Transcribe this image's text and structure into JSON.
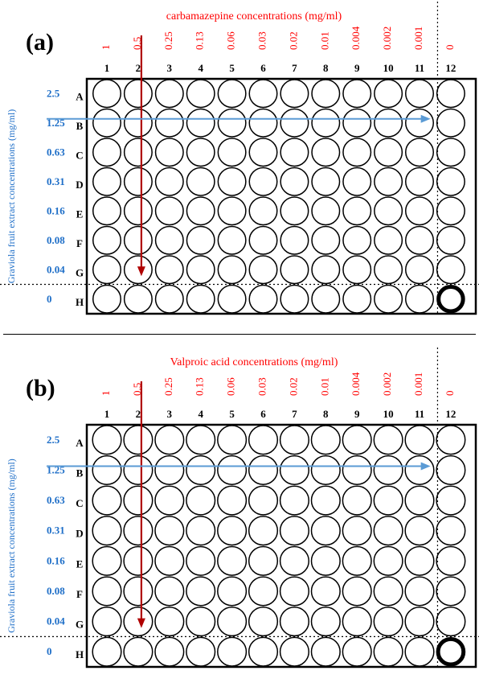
{
  "colors": {
    "x_axis": "#ff0000",
    "y_axis": "#1f6fc8",
    "arrow_red": "#b00000",
    "arrow_blue": "#5b9bd5",
    "well": "#000000",
    "plate_border": "#000000"
  },
  "columns": [
    "1",
    "2",
    "3",
    "4",
    "5",
    "6",
    "7",
    "8",
    "9",
    "10",
    "11",
    "12"
  ],
  "rows": [
    "A",
    "B",
    "C",
    "D",
    "E",
    "F",
    "G",
    "H"
  ],
  "graviola_concentrations": [
    "2.5",
    "1.25",
    "0.63",
    "0.31",
    "0.16",
    "0.08",
    "0.04",
    "0"
  ],
  "y_axis_title": "Graviola fruit extract concentrations (mg/ml)",
  "highlighted_well": "H12",
  "panels": [
    {
      "id": "a",
      "label": "(a)",
      "x_axis_title": "carbamazepine concentrations (mg/ml)",
      "drug_concentrations": [
        "1",
        "0.5",
        "0.25",
        "0.13",
        "0.06",
        "0.03",
        "0.02",
        "0.01",
        "0.004",
        "0.002",
        "0.001",
        "0"
      ]
    },
    {
      "id": "b",
      "label": "(b)",
      "x_axis_title": "Valproic acid concentrations (mg/ml)",
      "drug_concentrations": [
        "1",
        "0.5",
        "0.25",
        "0.13",
        "0.06",
        "0.03",
        "0.02",
        "0.01",
        "0.004",
        "0.002",
        "0.001",
        "0"
      ]
    }
  ]
}
